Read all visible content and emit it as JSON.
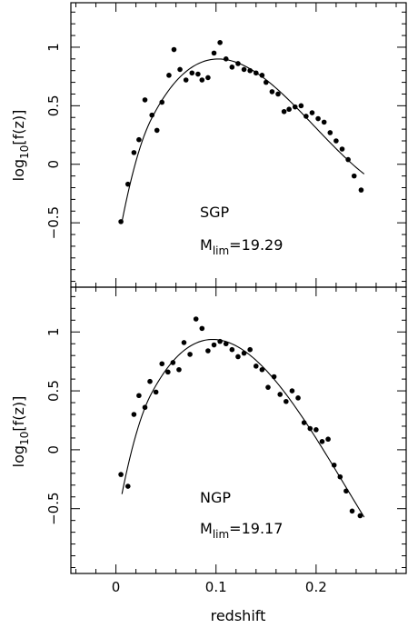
{
  "chart_data": [
    {
      "type": "scatter",
      "panel": "top",
      "annotation_label": "SGP",
      "annotation_mlim_prefix": "M",
      "annotation_mlim_sub": "lim",
      "annotation_mlim_value": "=19.29",
      "ylabel_prefix": "log",
      "ylabel_sub": "10",
      "ylabel_rest": "[f(z)]",
      "xlim": [
        -0.045,
        0.29
      ],
      "ylim": [
        -1.05,
        1.38
      ],
      "x_ticks": [
        0,
        0.1,
        0.2
      ],
      "y_ticks": [
        -0.5,
        0,
        0.5,
        1
      ],
      "y_tick_labels": [
        "−0.5",
        "0",
        "0.5",
        "1"
      ],
      "series": [
        {
          "points": [
            [
              0.005,
              -0.49
            ],
            [
              0.012,
              -0.17
            ],
            [
              0.018,
              0.1
            ],
            [
              0.023,
              0.21
            ],
            [
              0.029,
              0.55
            ],
            [
              0.036,
              0.42
            ],
            [
              0.041,
              0.29
            ],
            [
              0.046,
              0.53
            ],
            [
              0.053,
              0.76
            ],
            [
              0.058,
              0.98
            ],
            [
              0.064,
              0.81
            ],
            [
              0.07,
              0.72
            ],
            [
              0.076,
              0.78
            ],
            [
              0.082,
              0.77
            ],
            [
              0.086,
              0.72
            ],
            [
              0.092,
              0.74
            ],
            [
              0.098,
              0.95
            ],
            [
              0.104,
              1.04
            ],
            [
              0.11,
              0.9
            ],
            [
              0.116,
              0.83
            ],
            [
              0.122,
              0.86
            ],
            [
              0.128,
              0.81
            ],
            [
              0.134,
              0.8
            ],
            [
              0.14,
              0.78
            ],
            [
              0.146,
              0.76
            ],
            [
              0.15,
              0.7
            ],
            [
              0.156,
              0.62
            ],
            [
              0.162,
              0.6
            ],
            [
              0.168,
              0.45
            ],
            [
              0.173,
              0.47
            ],
            [
              0.179,
              0.49
            ],
            [
              0.185,
              0.5
            ],
            [
              0.19,
              0.41
            ],
            [
              0.196,
              0.44
            ],
            [
              0.202,
              0.39
            ],
            [
              0.208,
              0.36
            ],
            [
              0.214,
              0.27
            ],
            [
              0.22,
              0.2
            ],
            [
              0.226,
              0.13
            ],
            [
              0.232,
              0.04
            ],
            [
              0.238,
              -0.1
            ],
            [
              0.245,
              -0.22
            ]
          ]
        }
      ],
      "fit": {
        "peak_x": 0.105,
        "peak_y": 0.86,
        "start_x": 0.006,
        "end_x": 0.248
      }
    },
    {
      "type": "scatter",
      "panel": "bottom",
      "annotation_label": "NGP",
      "annotation_mlim_prefix": "M",
      "annotation_mlim_sub": "lim",
      "annotation_mlim_value": "=19.17",
      "ylabel_prefix": "log",
      "ylabel_sub": "10",
      "ylabel_rest": "[f(z)]",
      "xlabel": "redshift",
      "x_tick_labels": [
        "0",
        "0.1",
        "0.2"
      ],
      "xlim": [
        -0.045,
        0.29
      ],
      "ylim": [
        -1.05,
        1.38
      ],
      "x_ticks": [
        0,
        0.1,
        0.2
      ],
      "y_ticks": [
        -0.5,
        0,
        0.5,
        1
      ],
      "y_tick_labels": [
        "−0.5",
        "0",
        "0.5",
        "1"
      ],
      "series": [
        {
          "points": [
            [
              0.005,
              -0.21
            ],
            [
              0.012,
              -0.31
            ],
            [
              0.018,
              0.3
            ],
            [
              0.023,
              0.46
            ],
            [
              0.029,
              0.36
            ],
            [
              0.034,
              0.58
            ],
            [
              0.04,
              0.49
            ],
            [
              0.046,
              0.73
            ],
            [
              0.052,
              0.66
            ],
            [
              0.057,
              0.74
            ],
            [
              0.063,
              0.68
            ],
            [
              0.068,
              0.91
            ],
            [
              0.074,
              0.81
            ],
            [
              0.08,
              1.11
            ],
            [
              0.086,
              1.03
            ],
            [
              0.092,
              0.84
            ],
            [
              0.098,
              0.89
            ],
            [
              0.104,
              0.92
            ],
            [
              0.11,
              0.9
            ],
            [
              0.116,
              0.85
            ],
            [
              0.122,
              0.79
            ],
            [
              0.128,
              0.82
            ],
            [
              0.134,
              0.85
            ],
            [
              0.14,
              0.71
            ],
            [
              0.146,
              0.68
            ],
            [
              0.152,
              0.53
            ],
            [
              0.158,
              0.62
            ],
            [
              0.164,
              0.47
            ],
            [
              0.17,
              0.41
            ],
            [
              0.176,
              0.5
            ],
            [
              0.182,
              0.44
            ],
            [
              0.188,
              0.23
            ],
            [
              0.194,
              0.18
            ],
            [
              0.2,
              0.17
            ],
            [
              0.206,
              0.07
            ],
            [
              0.212,
              0.09
            ],
            [
              0.218,
              -0.13
            ],
            [
              0.224,
              -0.23
            ],
            [
              0.23,
              -0.35
            ],
            [
              0.236,
              -0.52
            ],
            [
              0.244,
              -0.56
            ]
          ]
        }
      ],
      "fit": {
        "peak_x": 0.1,
        "peak_y": 0.89,
        "start_x": 0.006,
        "end_x": 0.248
      }
    }
  ]
}
